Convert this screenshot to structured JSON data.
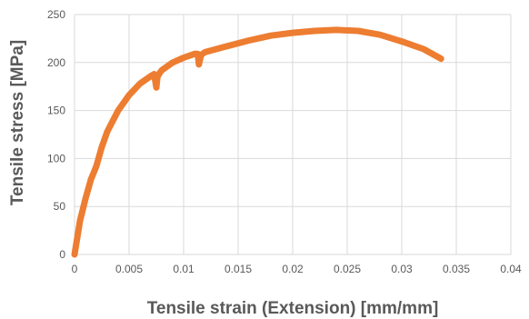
{
  "chart_data": {
    "type": "line",
    "title": "",
    "xlabel": "Tensile strain (Extension) [mm/mm]",
    "ylabel": "Tensile stress [MPa]",
    "xlim": [
      0,
      0.04
    ],
    "ylim": [
      0,
      250
    ],
    "grid": "vertical-and-horizontal",
    "legend": "none",
    "x_ticks": [
      "0",
      "0.005",
      "0.01",
      "0.015",
      "0.02",
      "0.025",
      "0.03",
      "0.035",
      "0.04"
    ],
    "y_ticks": [
      "0",
      "50",
      "100",
      "150",
      "200",
      "250"
    ],
    "series": [
      {
        "color": "#ED7D31",
        "x": [
          0,
          0.0005,
          0.001,
          0.0015,
          0.002,
          0.0025,
          0.003,
          0.004,
          0.005,
          0.006,
          0.007,
          0.0073,
          0.0075,
          0.0076,
          0.0078,
          0.008,
          0.009,
          0.01,
          0.011,
          0.0113,
          0.0114,
          0.0116,
          0.012,
          0.014,
          0.016,
          0.018,
          0.02,
          0.022,
          0.024,
          0.026,
          0.028,
          0.03,
          0.032,
          0.0336
        ],
        "y": [
          0,
          35,
          58,
          78,
          92,
          112,
          128,
          150,
          166,
          178,
          186,
          188,
          174,
          185,
          189,
          192,
          200,
          205,
          209,
          209,
          198,
          208,
          211,
          217,
          223,
          228,
          231,
          233,
          234,
          233,
          229,
          222,
          214,
          204
        ]
      }
    ]
  }
}
